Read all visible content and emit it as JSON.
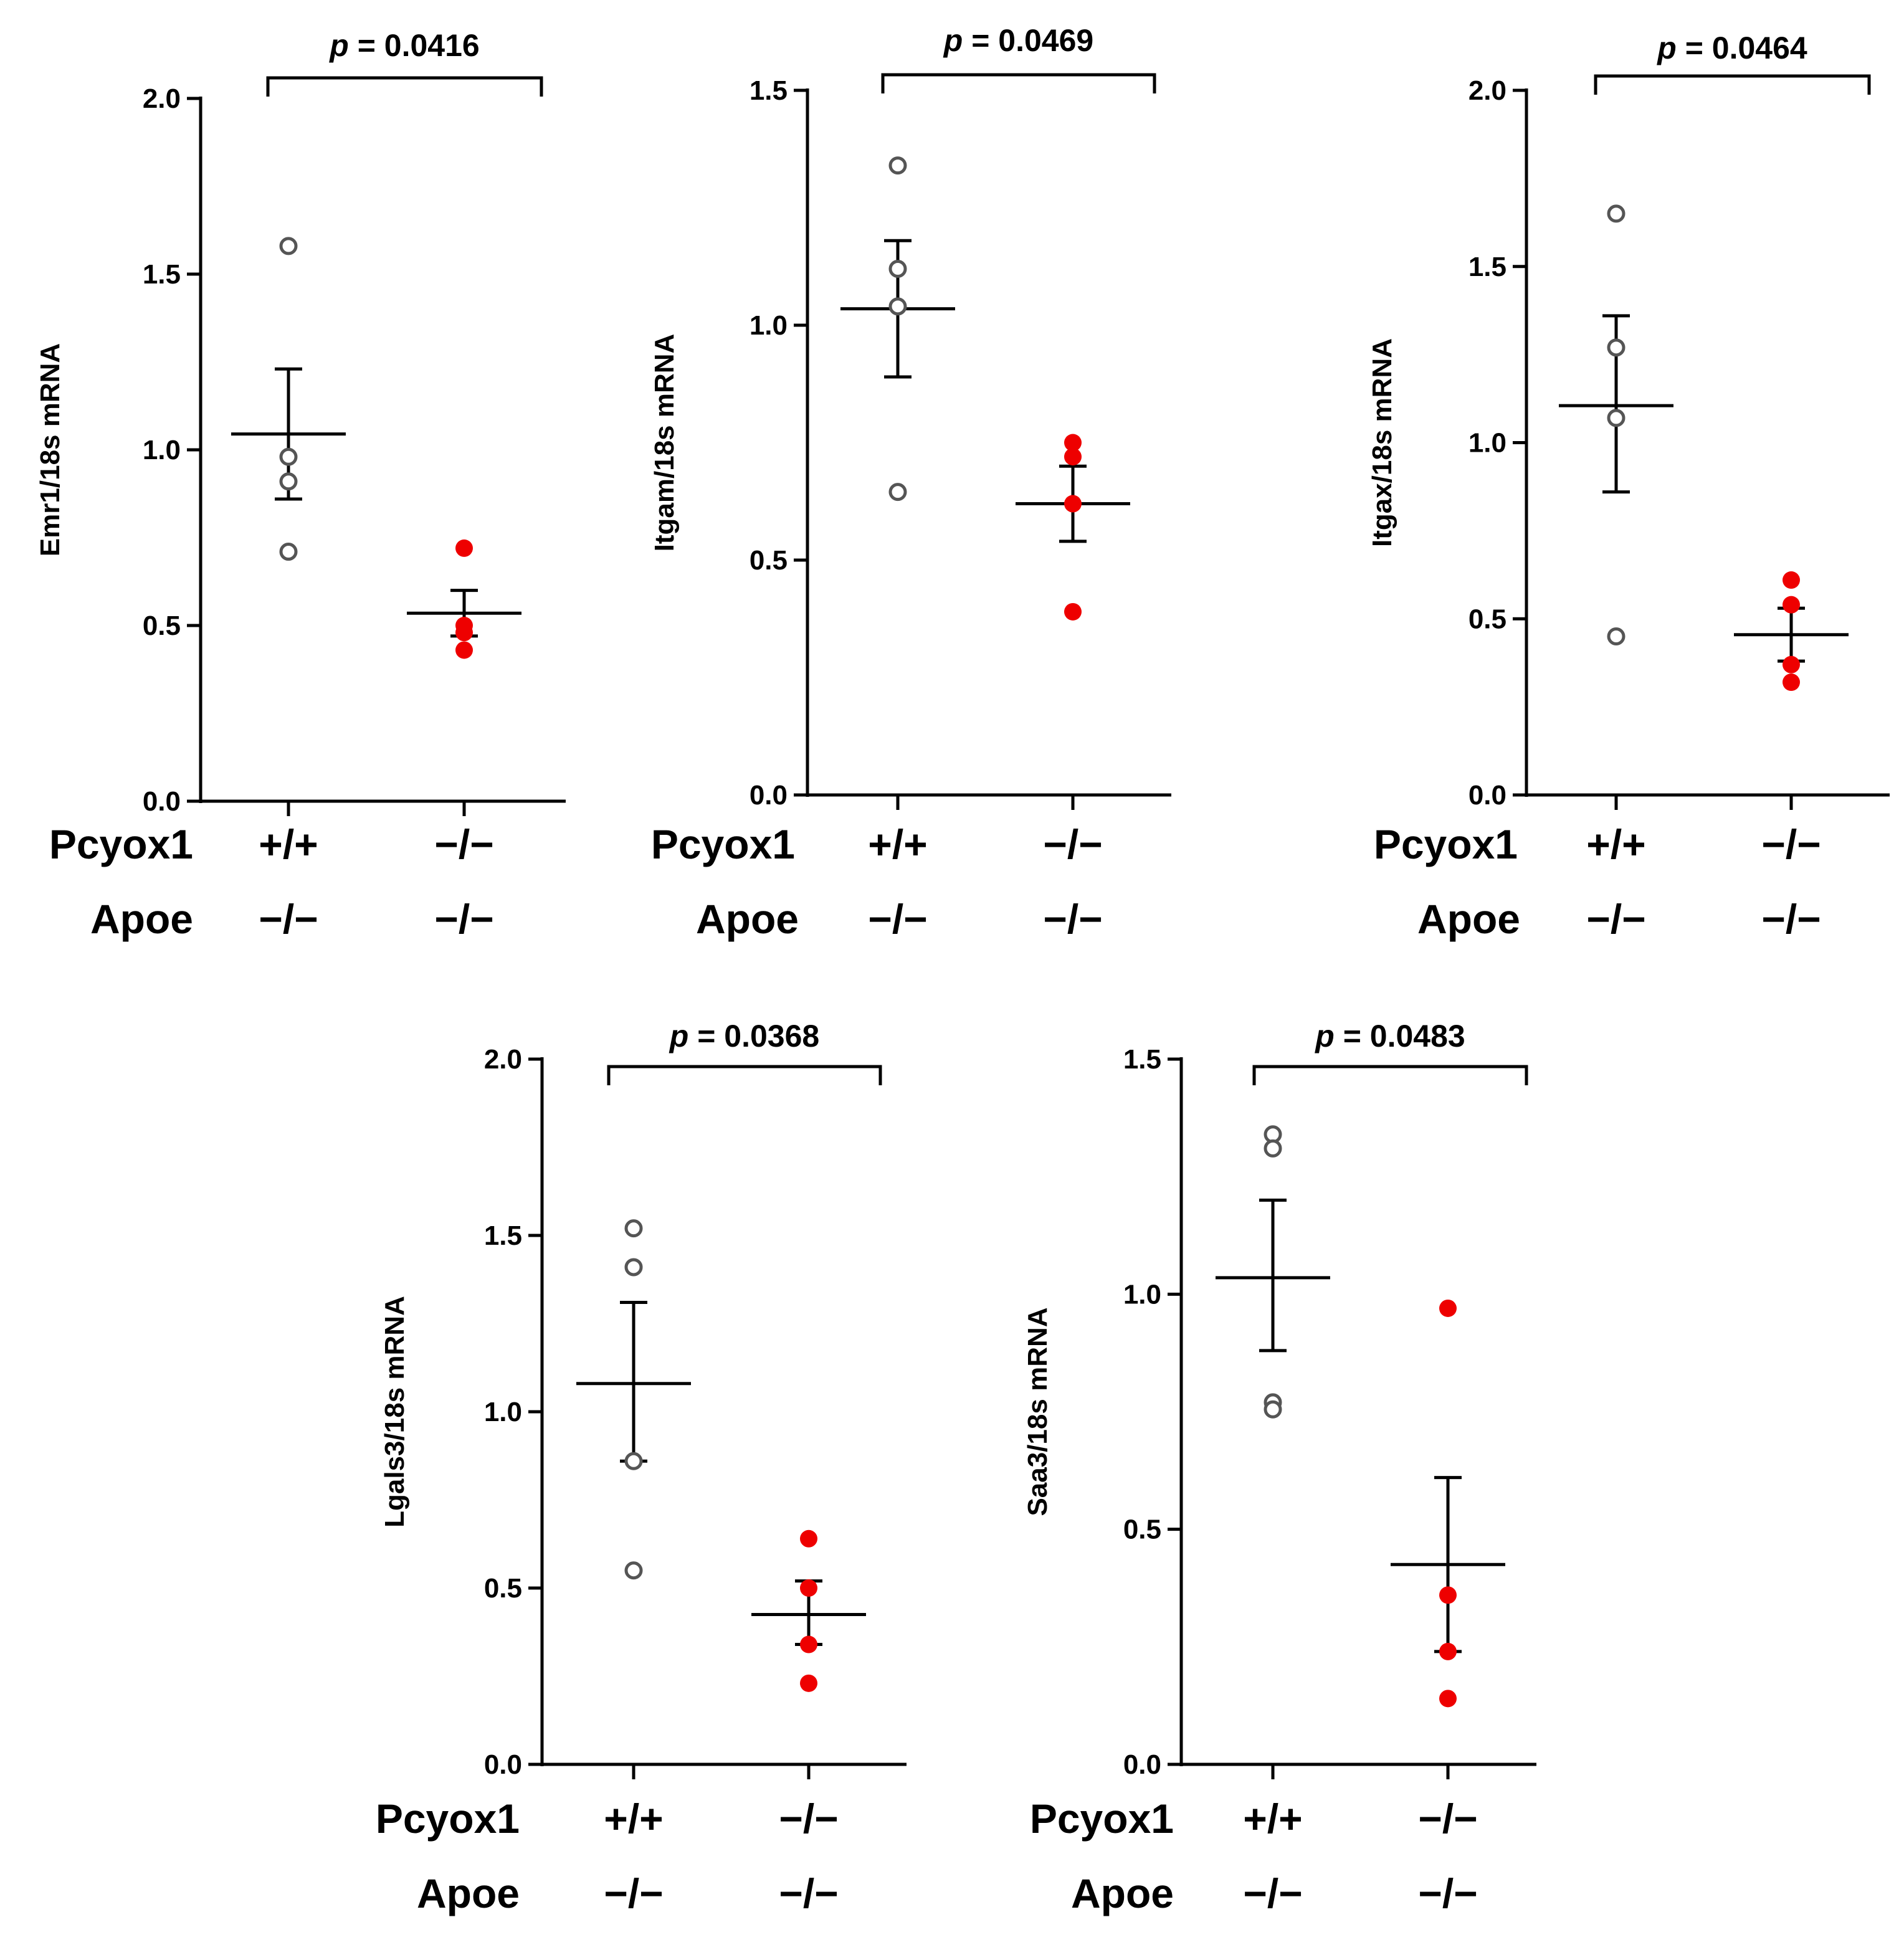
{
  "charts": [
    {
      "type": "scatter",
      "ylabel": "Emr1/18s mRNA",
      "ylim": [
        0,
        2.0
      ],
      "yticks": [
        "0.0",
        "0.5",
        "1.0",
        "1.5",
        "2.0"
      ],
      "pvalue": {
        "prefix": "p",
        "text": " = 0.0416"
      },
      "groups": [
        {
          "genotypes": [
            "+/+",
            "−/−"
          ],
          "fill": "#ffffff",
          "stroke": "#555555",
          "points": [
            1.58,
            0.98,
            0.91,
            0.71
          ],
          "mean": 1.045,
          "sem": [
            0.86,
            1.23
          ]
        },
        {
          "genotypes": [
            "−/−",
            "−/−"
          ],
          "fill": "#ee0000",
          "stroke": "#ee0000",
          "points": [
            0.72,
            0.5,
            0.48,
            0.43
          ],
          "mean": 0.535,
          "sem": [
            0.47,
            0.6
          ]
        }
      ]
    },
    {
      "type": "scatter",
      "ylabel": "Itgam/18s mRNA",
      "ylim": [
        0,
        1.5
      ],
      "yticks": [
        "0.0",
        "0.5",
        "1.0",
        "1.5"
      ],
      "pvalue": {
        "prefix": "p",
        "text": " = 0.0469"
      },
      "groups": [
        {
          "genotypes": [
            "+/+",
            "−/−"
          ],
          "fill": "#ffffff",
          "stroke": "#555555",
          "points": [
            1.34,
            1.12,
            1.04,
            0.645
          ],
          "mean": 1.035,
          "sem": [
            0.89,
            1.18
          ]
        },
        {
          "genotypes": [
            "−/−",
            "−/−"
          ],
          "fill": "#ee0000",
          "stroke": "#ee0000",
          "points": [
            0.75,
            0.72,
            0.62,
            0.39
          ],
          "mean": 0.62,
          "sem": [
            0.54,
            0.7
          ]
        }
      ]
    },
    {
      "type": "scatter",
      "ylabel": "Itgax/18s mRNA",
      "ylim": [
        0,
        2.0
      ],
      "yticks": [
        "0.0",
        "0.5",
        "1.0",
        "1.5",
        "2.0"
      ],
      "pvalue": {
        "prefix": "p",
        "text": " = 0.0464"
      },
      "groups": [
        {
          "genotypes": [
            "+/+",
            "−/−"
          ],
          "fill": "#ffffff",
          "stroke": "#555555",
          "points": [
            1.65,
            1.27,
            1.07,
            0.45
          ],
          "mean": 1.105,
          "sem": [
            0.86,
            1.36
          ]
        },
        {
          "genotypes": [
            "−/−",
            "−/−"
          ],
          "fill": "#ee0000",
          "stroke": "#ee0000",
          "points": [
            0.61,
            0.54,
            0.37,
            0.32
          ],
          "mean": 0.455,
          "sem": [
            0.38,
            0.53
          ]
        }
      ]
    },
    {
      "type": "scatter",
      "ylabel": "Lgals3/18s mRNA",
      "ylim": [
        0,
        2.0
      ],
      "yticks": [
        "0.0",
        "0.5",
        "1.0",
        "1.5",
        "2.0"
      ],
      "pvalue": {
        "prefix": "p",
        "text": " = 0.0368"
      },
      "groups": [
        {
          "genotypes": [
            "+/+",
            "−/−"
          ],
          "fill": "#ffffff",
          "stroke": "#555555",
          "points": [
            1.52,
            1.41,
            0.86,
            0.55
          ],
          "mean": 1.08,
          "sem": [
            0.86,
            1.31
          ]
        },
        {
          "genotypes": [
            "−/−",
            "−/−"
          ],
          "fill": "#ee0000",
          "stroke": "#ee0000",
          "points": [
            0.64,
            0.5,
            0.34,
            0.23
          ],
          "mean": 0.425,
          "sem": [
            0.34,
            0.52
          ]
        }
      ]
    },
    {
      "type": "scatter",
      "ylabel": "Saa3/18s mRNA",
      "ylim": [
        0,
        1.5
      ],
      "yticks": [
        "0.0",
        "0.5",
        "1.0",
        "1.5"
      ],
      "pvalue": {
        "prefix": "p",
        "text": " = 0.0483"
      },
      "groups": [
        {
          "genotypes": [
            "+/+",
            "−/−"
          ],
          "fill": "#ffffff",
          "stroke": "#555555",
          "points": [
            1.34,
            1.31,
            0.77,
            0.755
          ],
          "mean": 1.035,
          "sem": [
            0.88,
            1.2
          ]
        },
        {
          "genotypes": [
            "−/−",
            "−/−"
          ],
          "fill": "#ee0000",
          "stroke": "#ee0000",
          "points": [
            0.97,
            0.36,
            0.24,
            0.14
          ],
          "mean": 0.425,
          "sem": [
            0.24,
            0.61
          ]
        }
      ]
    }
  ],
  "row_labels": [
    "Pcyox1",
    "Apoe"
  ]
}
